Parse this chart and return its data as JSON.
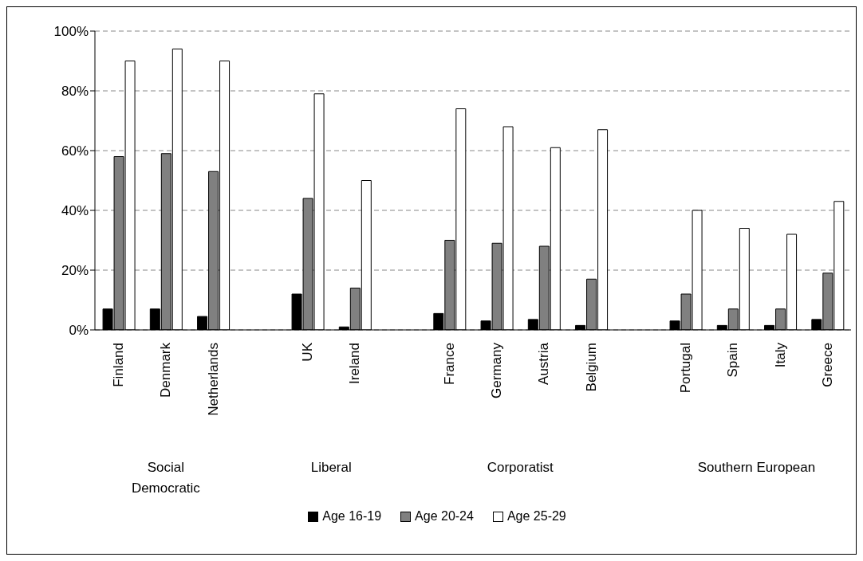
{
  "chart_data": {
    "type": "bar",
    "categories": [
      "Finland",
      "Denmark",
      "Netherlands",
      null,
      "UK",
      "Ireland",
      null,
      "France",
      "Germany",
      "Austria",
      "Belgium",
      null,
      "Portugal",
      "Spain",
      "Italy",
      "Greece"
    ],
    "series": [
      {
        "name": "Age 16-19",
        "color": "#000000",
        "values": [
          7,
          7,
          4.5,
          null,
          12,
          1,
          null,
          5.5,
          3,
          3.5,
          1.5,
          null,
          3,
          1.5,
          1.5,
          3.5
        ]
      },
      {
        "name": "Age 20-24",
        "color": "#808080",
        "values": [
          58,
          59,
          53,
          null,
          44,
          14,
          null,
          30,
          29,
          28,
          17,
          null,
          12,
          7,
          7,
          19
        ]
      },
      {
        "name": "Age 25-29",
        "color": "#ffffff",
        "values": [
          90,
          94,
          90,
          null,
          79,
          50,
          null,
          74,
          68,
          61,
          67,
          null,
          40,
          34,
          32,
          43
        ]
      }
    ],
    "ylim": [
      0,
      100
    ],
    "yticks": [
      {
        "value": 0,
        "label": "0%"
      },
      {
        "value": 20,
        "label": "20%"
      },
      {
        "value": 40,
        "label": "40%"
      },
      {
        "value": 60,
        "label": "60%"
      },
      {
        "value": 80,
        "label": "80%"
      },
      {
        "value": 100,
        "label": "100%"
      }
    ],
    "grid": "y",
    "legend": "bottom",
    "annotations": [
      "Social\nDemocratic",
      "Liberal",
      "Corporatist",
      "Southern European"
    ]
  }
}
